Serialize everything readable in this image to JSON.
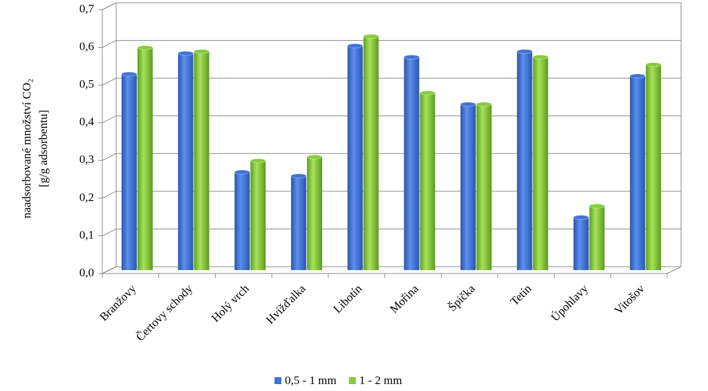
{
  "chart_data": {
    "type": "bar",
    "y_label": [
      "naadsorbované množství CO₂",
      "[g/g adsorbentu]"
    ],
    "categories": [
      "Branžovy",
      "Čertovy schody",
      "Holý vrch",
      "Hvížďalka",
      "Libotín",
      "Mořina",
      "Špička",
      "Tetín",
      "Úpohlavy",
      "Vitošov"
    ],
    "series": [
      {
        "name": "0,5 - 1 mm",
        "color": "#3f74d6",
        "values": [
          0.52,
          0.575,
          0.26,
          0.25,
          0.595,
          0.565,
          0.44,
          0.58,
          0.14,
          0.515
        ]
      },
      {
        "name": "1 - 2 mm",
        "color": "#86cc3c",
        "values": [
          0.59,
          0.58,
          0.29,
          0.3,
          0.62,
          0.47,
          0.44,
          0.565,
          0.17,
          0.545
        ]
      }
    ],
    "ylim": [
      0,
      0.7
    ],
    "yticks": [
      {
        "value": 0,
        "label": "0,0"
      },
      {
        "value": 0.1,
        "label": "0,1"
      },
      {
        "value": 0.2,
        "label": "0,2"
      },
      {
        "value": 0.3,
        "label": "0,3"
      },
      {
        "value": 0.4,
        "label": "0,4"
      },
      {
        "value": 0.5,
        "label": "0,5"
      },
      {
        "value": 0.6,
        "label": "0,6"
      },
      {
        "value": 0.7,
        "label": "0,7"
      }
    ],
    "grid": true
  }
}
